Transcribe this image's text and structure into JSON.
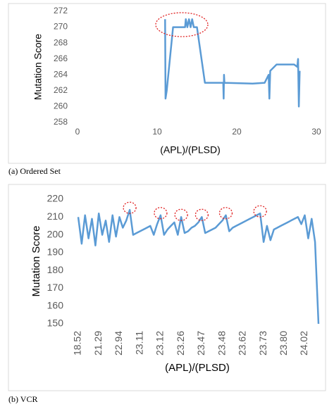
{
  "chart_data": [
    {
      "type": "line",
      "caption": "(a) Ordered Set",
      "xlabel": "(APL)/(PLSD)",
      "ylabel": "Mutation Score",
      "xlim": [
        0,
        30
      ],
      "xticks": [
        0,
        10,
        20,
        30
      ],
      "ylim": [
        258,
        272
      ],
      "yticks": [
        258,
        260,
        262,
        264,
        266,
        268,
        270,
        272
      ],
      "grid": false,
      "series": [
        {
          "name": "Mutation Score",
          "color": "#5b9bd5",
          "x": [
            11,
            11.05,
            11.2,
            12,
            13.5,
            13.6,
            13.8,
            14,
            14.2,
            14.4,
            14.6,
            15,
            16,
            18.3,
            18.35,
            18.4,
            18.45,
            22,
            23.5,
            24,
            24.1,
            24.2,
            25,
            27.2,
            27.6,
            27.7,
            27.8,
            27.9
          ],
          "values": [
            271,
            261,
            262,
            270,
            270,
            271,
            270,
            271,
            270,
            271,
            270,
            270,
            263,
            263,
            261,
            264,
            263,
            262.9,
            263,
            264,
            261,
            264.5,
            265.3,
            265.3,
            265,
            266,
            260,
            264.5
          ]
        }
      ]
    },
    {
      "type": "line",
      "caption": "(b) VCR",
      "xlabel": "(APL)/(PLSD)",
      "ylabel": "Mutation Score",
      "categories": [
        "18.52",
        null,
        null,
        null,
        null,
        null,
        "21.29",
        null,
        null,
        null,
        null,
        null,
        "22.94",
        null,
        null,
        null,
        null,
        null,
        "23.11",
        null,
        null,
        null,
        null,
        null,
        "23.12",
        null,
        null,
        null,
        null,
        null,
        "23.26",
        null,
        null,
        null,
        null,
        null,
        "23.47",
        null,
        null,
        null,
        null,
        null,
        "23.48",
        null,
        null,
        null,
        null,
        null,
        "23.62",
        null,
        null,
        null,
        null,
        null,
        "23.73",
        null,
        null,
        null,
        null,
        null,
        "23.80",
        null,
        null,
        null,
        null,
        null,
        "24.02",
        null,
        null,
        null,
        null
      ],
      "ylim": [
        150,
        220
      ],
      "yticks": [
        150,
        160,
        170,
        180,
        190,
        200,
        210,
        220
      ],
      "grid": false,
      "series": [
        {
          "name": "Mutation Score",
          "color": "#5b9bd5",
          "values": [
            210,
            195,
            211,
            198,
            209,
            194,
            212,
            200,
            208,
            196,
            211,
            199,
            210,
            204,
            208,
            214,
            200,
            201,
            202,
            203,
            204,
            205,
            200,
            206,
            211,
            200,
            203,
            205,
            207,
            200,
            210,
            201,
            202,
            204,
            205,
            207,
            210,
            201,
            202,
            203,
            204,
            206,
            208,
            211,
            202,
            204,
            205,
            206,
            207,
            208,
            209,
            210,
            211,
            212,
            196,
            205,
            197,
            203,
            204,
            205,
            206,
            207,
            208,
            209,
            210,
            206,
            211,
            198,
            209,
            196,
            150
          ]
        }
      ]
    }
  ]
}
